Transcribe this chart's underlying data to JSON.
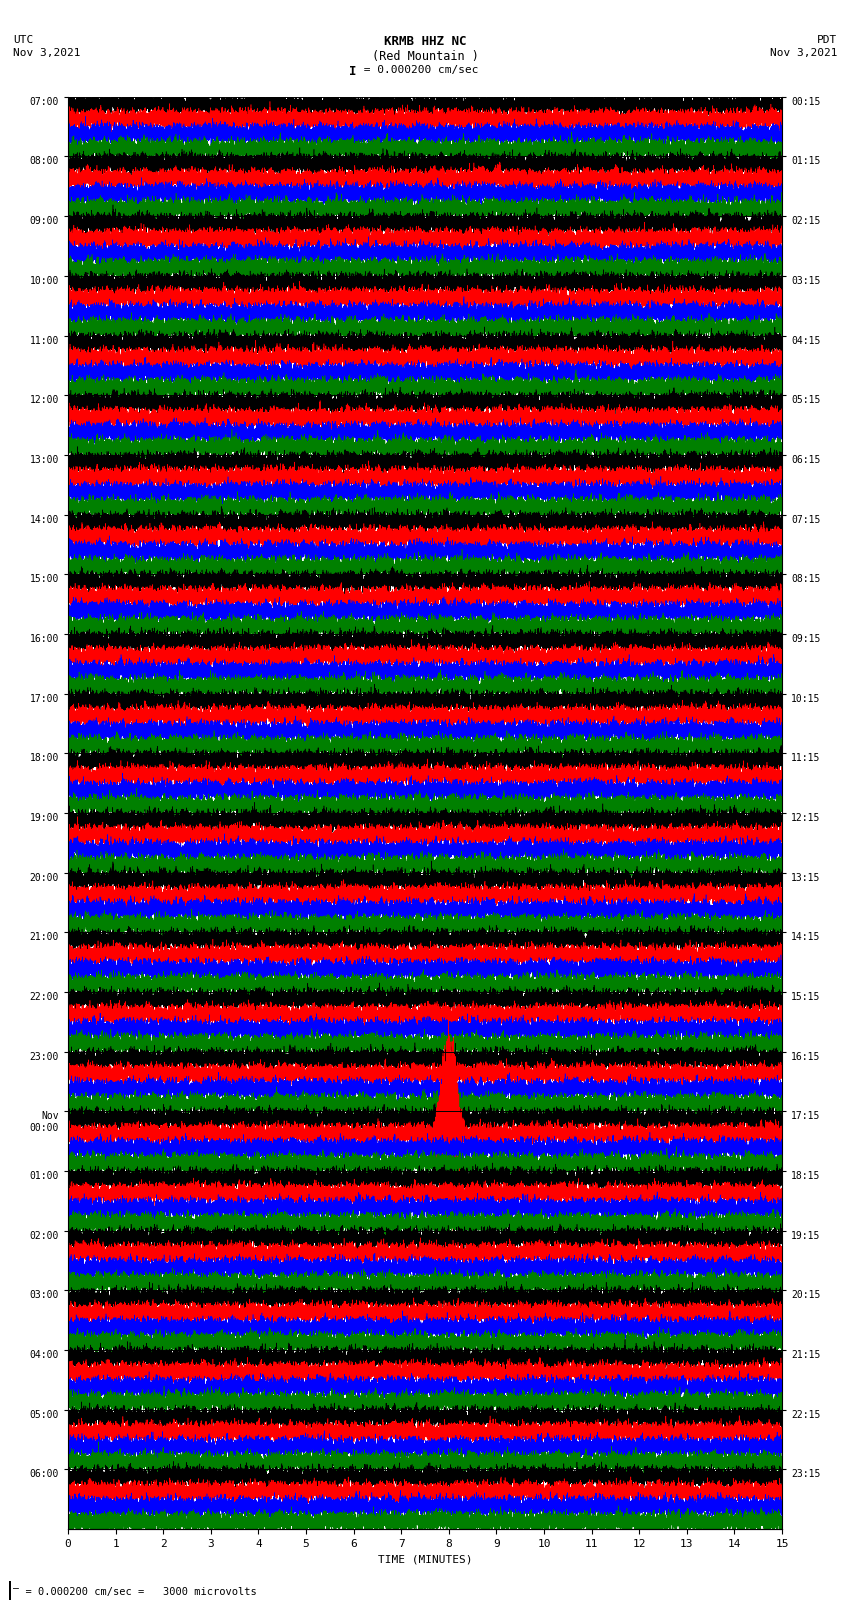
{
  "title_line1": "KRMB HHZ NC",
  "title_line2": "(Red Mountain )",
  "scale_text": "= 0.000200 cm/sec",
  "left_header_line1": "UTC",
  "left_header_line2": "Nov 3,2021",
  "right_header_line1": "PDT",
  "right_header_line2": "Nov 3,2021",
  "bottom_label": "TIME (MINUTES)",
  "footnote": "= 0.000200 cm/sec =   3000 microvolts",
  "utc_times_left": [
    "07:00",
    "08:00",
    "09:00",
    "10:00",
    "11:00",
    "12:00",
    "13:00",
    "14:00",
    "15:00",
    "16:00",
    "17:00",
    "18:00",
    "19:00",
    "20:00",
    "21:00",
    "22:00",
    "23:00",
    "Nov\n00:00",
    "01:00",
    "02:00",
    "03:00",
    "04:00",
    "05:00",
    "06:00"
  ],
  "pdt_times_right": [
    "00:15",
    "01:15",
    "02:15",
    "03:15",
    "04:15",
    "05:15",
    "06:15",
    "07:15",
    "08:15",
    "09:15",
    "10:15",
    "11:15",
    "12:15",
    "13:15",
    "14:15",
    "15:15",
    "16:15",
    "17:15",
    "18:15",
    "19:15",
    "20:15",
    "21:15",
    "22:15",
    "23:15"
  ],
  "n_hour_blocks": 24,
  "subtrace_colors": [
    "black",
    "red",
    "blue",
    "green"
  ],
  "n_subtraces": 4,
  "minutes_per_trace": 15,
  "sample_rate": 100,
  "fig_width": 8.5,
  "fig_height": 16.13,
  "bg_color": "white",
  "trace_amplitude": 0.38,
  "noise_amplitude": 0.14,
  "lf_amplitude": 0.08,
  "linewidth": 0.4
}
